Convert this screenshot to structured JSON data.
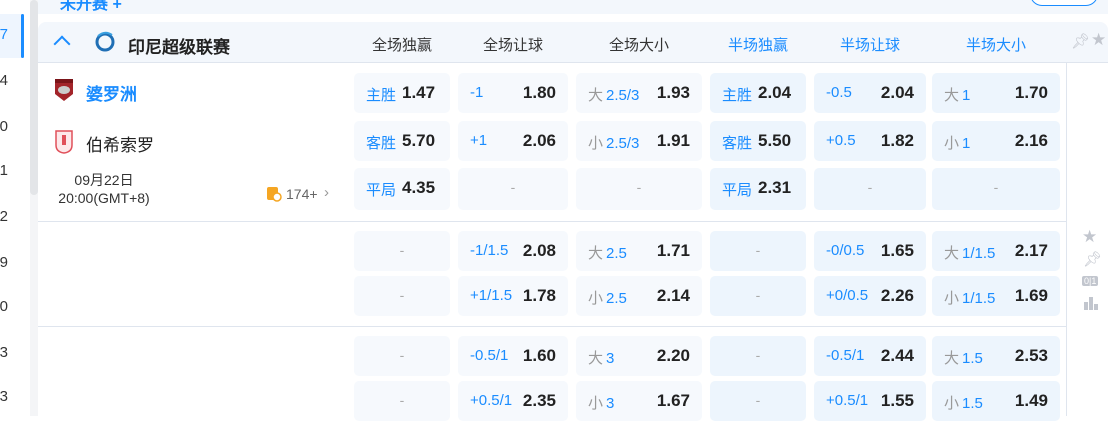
{
  "top": {
    "status_text": "未开赛 +"
  },
  "sidebar": {
    "numbers": [
      "7",
      "4",
      "0",
      "1",
      "2",
      "9",
      "0",
      "3",
      "3"
    ]
  },
  "league": {
    "name": "印尼超级联赛"
  },
  "columns": [
    "全场独赢",
    "全场让球",
    "全场大小",
    "半场独赢",
    "半场让球",
    "半场大小"
  ],
  "match": {
    "home": "婆罗洲",
    "away": "伯希索罗",
    "date": "09月22日",
    "time": "20:00(GMT+8)",
    "more_count": "174+"
  },
  "rows": [
    [
      [
        "主胜",
        "",
        "1.47"
      ],
      [
        "-1",
        "",
        "1.80"
      ],
      [
        "大",
        "2.5/3",
        "1.93"
      ],
      [
        "主胜",
        "",
        "2.04"
      ],
      [
        "-0.5",
        "",
        "2.04"
      ],
      [
        "大",
        "1",
        "1.70"
      ]
    ],
    [
      [
        "客胜",
        "",
        "5.70"
      ],
      [
        "+1",
        "",
        "2.06"
      ],
      [
        "小",
        "2.5/3",
        "1.91"
      ],
      [
        "客胜",
        "",
        "5.50"
      ],
      [
        "+0.5",
        "",
        "1.82"
      ],
      [
        "小",
        "1",
        "2.16"
      ]
    ],
    [
      [
        "平局",
        "",
        "4.35"
      ],
      null,
      null,
      [
        "平局",
        "",
        "2.31"
      ],
      null,
      null
    ],
    [
      null,
      [
        "-1/1.5",
        "",
        "2.08"
      ],
      [
        "大",
        "2.5",
        "1.71"
      ],
      null,
      [
        "-0/0.5",
        "",
        "1.65"
      ],
      [
        "大",
        "1/1.5",
        "2.17"
      ]
    ],
    [
      null,
      [
        "+1/1.5",
        "",
        "1.78"
      ],
      [
        "小",
        "2.5",
        "2.14"
      ],
      null,
      [
        "+0/0.5",
        "",
        "2.26"
      ],
      [
        "小",
        "1/1.5",
        "1.69"
      ]
    ],
    [
      null,
      [
        "-0.5/1",
        "",
        "1.60"
      ],
      [
        "大",
        "3",
        "2.20"
      ],
      null,
      [
        "-0.5/1",
        "",
        "2.44"
      ],
      [
        "大",
        "1.5",
        "2.53"
      ]
    ],
    [
      null,
      [
        "+0.5/1",
        "",
        "2.35"
      ],
      [
        "小",
        "3",
        "1.67"
      ],
      null,
      [
        "+0.5/1",
        "",
        "1.55"
      ],
      [
        "小",
        "1.5",
        "1.49"
      ]
    ]
  ],
  "empty_text": "-",
  "side_icons": {
    "s01": "0|1"
  },
  "colors": {
    "accent": "#1a8cff",
    "half_bg": "#edf5fd",
    "full_bg": "#f6f9fd"
  }
}
